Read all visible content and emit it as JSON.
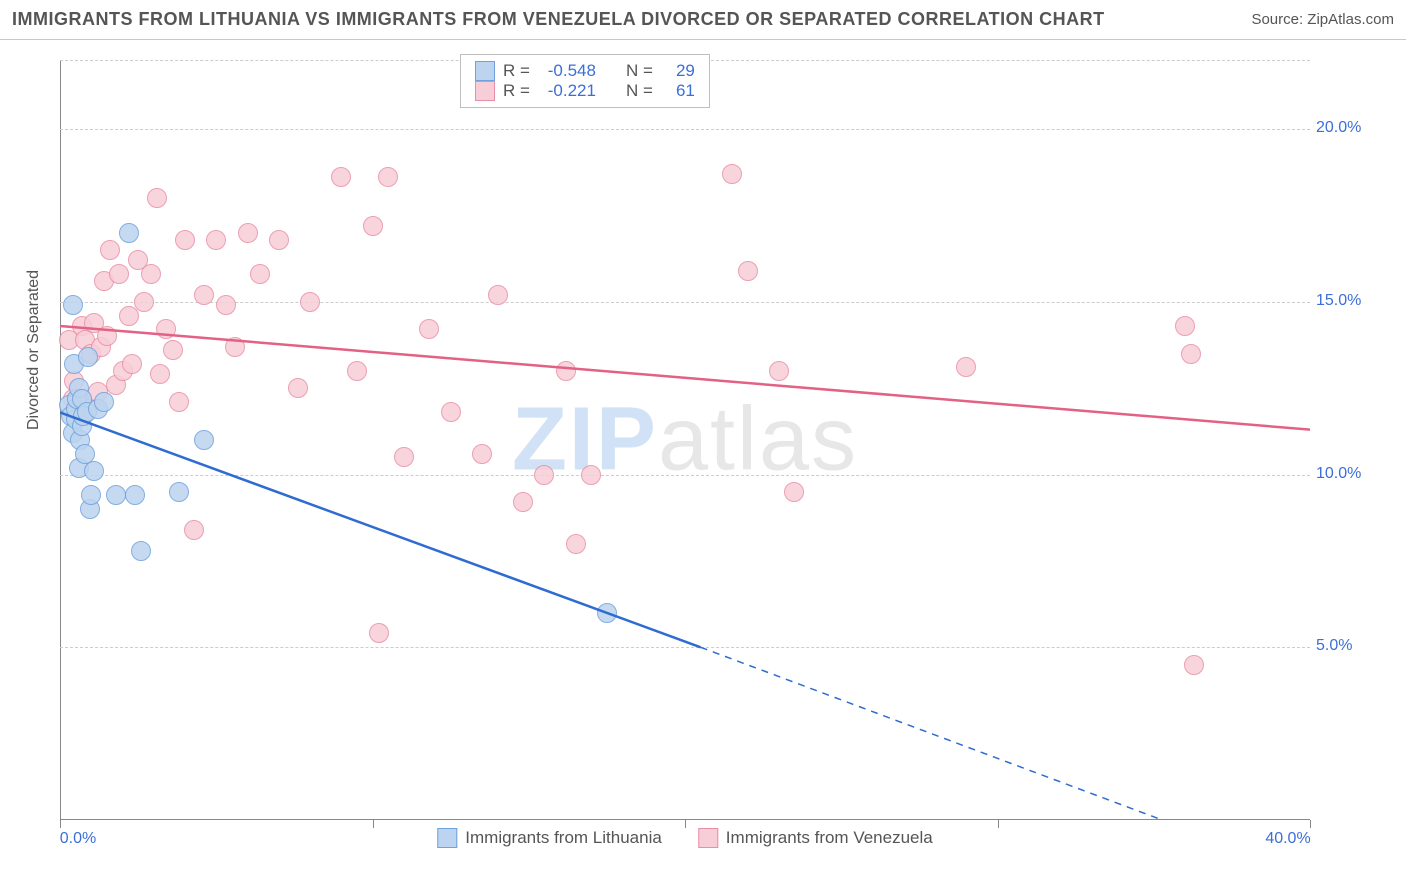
{
  "header": {
    "title": "IMMIGRANTS FROM LITHUANIA VS IMMIGRANTS FROM VENEZUELA DIVORCED OR SEPARATED CORRELATION CHART",
    "source": "Source: ZipAtlas.com"
  },
  "chart": {
    "type": "scatter",
    "ylabel": "Divorced or Separated",
    "watermark_a": "ZIP",
    "watermark_b": "atlas",
    "xlim": [
      0,
      40
    ],
    "ylim": [
      0,
      22
    ],
    "x_ticks": [
      0,
      10,
      20,
      30,
      40
    ],
    "x_tick_labels": [
      "0.0%",
      "",
      "",
      "",
      "40.0%"
    ],
    "y_ticks": [
      5,
      10,
      15,
      20
    ],
    "y_tick_labels": [
      "5.0%",
      "10.0%",
      "15.0%",
      "20.0%"
    ],
    "grid_color": "#cccccc",
    "axis_color": "#888888",
    "background_color": "#ffffff",
    "label_fontsize": 16,
    "tick_color": "#3b6fd8",
    "series": [
      {
        "name": "Immigrants from Lithuania",
        "fill": "#bcd4ef",
        "stroke": "#6fa1dc",
        "line_color": "#2f6bd0",
        "R": "-0.548",
        "N": "29",
        "regression": {
          "x1": 0,
          "y1": 11.8,
          "x2": 20.5,
          "y2": 5.0,
          "dash_x2": 40.0,
          "dash_y2": -1.6
        },
        "points": [
          [
            0.3,
            12.0
          ],
          [
            0.35,
            11.7
          ],
          [
            0.4,
            14.9
          ],
          [
            0.4,
            11.2
          ],
          [
            0.45,
            13.2
          ],
          [
            0.5,
            11.6
          ],
          [
            0.5,
            11.9
          ],
          [
            0.55,
            12.2
          ],
          [
            0.6,
            10.2
          ],
          [
            0.6,
            12.5
          ],
          [
            0.65,
            11.0
          ],
          [
            0.7,
            11.4
          ],
          [
            0.7,
            12.2
          ],
          [
            0.75,
            11.7
          ],
          [
            0.8,
            10.6
          ],
          [
            0.85,
            11.8
          ],
          [
            0.9,
            13.4
          ],
          [
            0.95,
            9.0
          ],
          [
            1.0,
            9.4
          ],
          [
            1.1,
            10.1
          ],
          [
            1.2,
            11.9
          ],
          [
            1.4,
            12.1
          ],
          [
            1.8,
            9.4
          ],
          [
            2.2,
            17.0
          ],
          [
            2.4,
            9.4
          ],
          [
            2.6,
            7.8
          ],
          [
            3.8,
            9.5
          ],
          [
            4.6,
            11.0
          ],
          [
            17.5,
            6.0
          ]
        ]
      },
      {
        "name": "Immigrants from Venezuela",
        "fill": "#f7cdd7",
        "stroke": "#e98fa5",
        "line_color": "#e26184",
        "R": "-0.221",
        "N": "61",
        "regression": {
          "x1": 0,
          "y1": 14.3,
          "x2": 40,
          "y2": 11.3
        },
        "points": [
          [
            0.3,
            13.9
          ],
          [
            0.4,
            12.2
          ],
          [
            0.45,
            12.7
          ],
          [
            0.6,
            12.2
          ],
          [
            0.7,
            14.3
          ],
          [
            0.8,
            13.9
          ],
          [
            0.9,
            11.9
          ],
          [
            1.0,
            13.5
          ],
          [
            1.1,
            14.4
          ],
          [
            1.2,
            12.4
          ],
          [
            1.3,
            13.7
          ],
          [
            1.4,
            15.6
          ],
          [
            1.5,
            14.0
          ],
          [
            1.6,
            16.5
          ],
          [
            1.8,
            12.6
          ],
          [
            1.9,
            15.8
          ],
          [
            2.0,
            13.0
          ],
          [
            2.2,
            14.6
          ],
          [
            2.3,
            13.2
          ],
          [
            2.5,
            16.2
          ],
          [
            2.7,
            15.0
          ],
          [
            2.9,
            15.8
          ],
          [
            3.1,
            18.0
          ],
          [
            3.2,
            12.9
          ],
          [
            3.4,
            14.2
          ],
          [
            3.6,
            13.6
          ],
          [
            3.8,
            12.1
          ],
          [
            4.0,
            16.8
          ],
          [
            4.3,
            8.4
          ],
          [
            4.6,
            15.2
          ],
          [
            5.0,
            16.8
          ],
          [
            5.3,
            14.9
          ],
          [
            5.6,
            13.7
          ],
          [
            6.0,
            17.0
          ],
          [
            6.4,
            15.8
          ],
          [
            7.0,
            16.8
          ],
          [
            7.6,
            12.5
          ],
          [
            8.0,
            15.0
          ],
          [
            9.0,
            18.6
          ],
          [
            9.5,
            13.0
          ],
          [
            10.0,
            17.2
          ],
          [
            10.5,
            18.6
          ],
          [
            10.2,
            5.4
          ],
          [
            11.0,
            10.5
          ],
          [
            11.8,
            14.2
          ],
          [
            12.5,
            11.8
          ],
          [
            13.5,
            10.6
          ],
          [
            14.0,
            15.2
          ],
          [
            14.8,
            9.2
          ],
          [
            15.5,
            10.0
          ],
          [
            16.2,
            13.0
          ],
          [
            16.5,
            8.0
          ],
          [
            17.0,
            10.0
          ],
          [
            21.5,
            18.7
          ],
          [
            22.0,
            15.9
          ],
          [
            23.0,
            13.0
          ],
          [
            23.5,
            9.5
          ],
          [
            29.0,
            13.1
          ],
          [
            36.0,
            14.3
          ],
          [
            36.2,
            13.5
          ],
          [
            36.3,
            4.5
          ]
        ]
      }
    ]
  },
  "legend": {
    "R_label": "R =",
    "N_label": "N ="
  }
}
